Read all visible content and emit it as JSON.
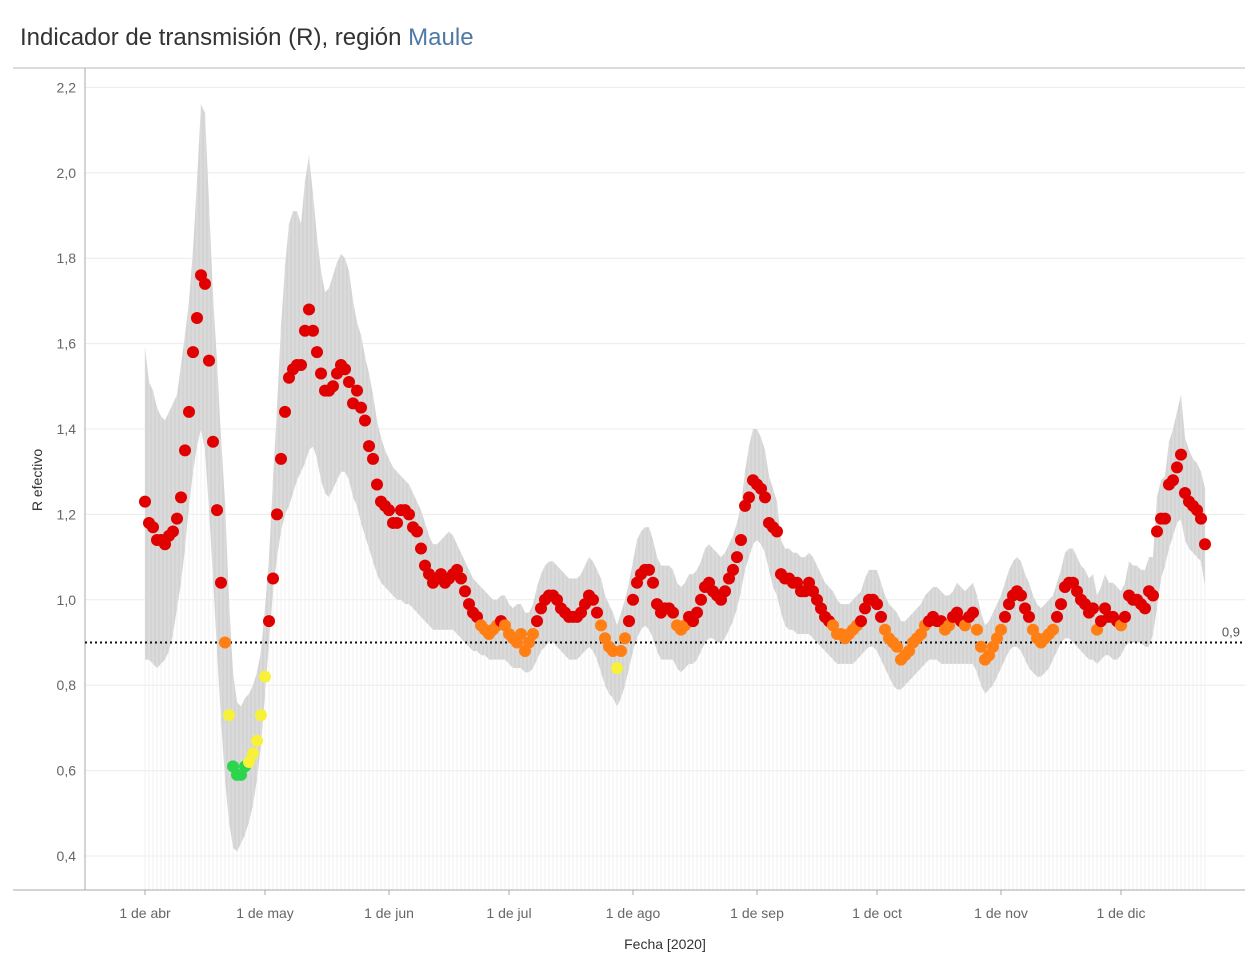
{
  "title": {
    "prefix": "Indicador de transmisión (R), región ",
    "highlight": "Maule"
  },
  "colors": {
    "red": "#e00000",
    "orange": "#ff7f14",
    "yellow": "#f7f13a",
    "green": "#2bd64c",
    "band": "#d4d4d4",
    "grid": "#ececec",
    "axis": "#aaaaaa",
    "highlight": "#4e79a7"
  },
  "chart_data": {
    "type": "scatter",
    "xlabel": "Fecha [2020]",
    "ylabel": "R efectivo",
    "ylim": [
      0.32,
      2.24
    ],
    "y_ticks": [
      0.4,
      0.6,
      0.8,
      1.0,
      1.2,
      1.4,
      1.6,
      1.8,
      2.0,
      2.2
    ],
    "y_tick_labels": [
      "0,4",
      "0,6",
      "0,8",
      "1,0",
      "1,2",
      "1,4",
      "1,6",
      "1,8",
      "2,0",
      "2,2"
    ],
    "x_ticks": [
      {
        "date": "2020-04-01",
        "label": "1 de abr"
      },
      {
        "date": "2020-05-01",
        "label": "1 de may"
      },
      {
        "date": "2020-06-01",
        "label": "1 de jun"
      },
      {
        "date": "2020-07-01",
        "label": "1 de jul"
      },
      {
        "date": "2020-08-01",
        "label": "1 de ago"
      },
      {
        "date": "2020-09-01",
        "label": "1 de sep"
      },
      {
        "date": "2020-10-01",
        "label": "1 de oct"
      },
      {
        "date": "2020-11-01",
        "label": "1 de nov"
      },
      {
        "date": "2020-12-01",
        "label": "1 de dic"
      }
    ],
    "reference_line": {
      "value": 0.9,
      "label": "0,9"
    },
    "grid": "horizontal",
    "legend": "none",
    "color_rule": {
      "red": "R >= 0.95",
      "orange": "0.85 <= R < 0.95",
      "yellow": "0.62 <= R < 0.85",
      "green": "R < 0.62"
    },
    "series": [
      {
        "start_date": "2020-04-01",
        "r": [
          1.23,
          1.18,
          1.17,
          1.14,
          1.14,
          1.13,
          1.15,
          1.16,
          1.19,
          1.24,
          1.35,
          1.44,
          1.58,
          1.66,
          1.76,
          1.74,
          1.56,
          1.37,
          1.21,
          1.04,
          0.9,
          0.73,
          0.61,
          0.59,
          0.59,
          0.61,
          0.62,
          0.64,
          0.67,
          0.73,
          0.82,
          0.95,
          1.05,
          1.2,
          1.33,
          1.44,
          1.52,
          1.54,
          1.55,
          1.55,
          1.63,
          1.68,
          1.63,
          1.58,
          1.53,
          1.49,
          1.49,
          1.5,
          1.53,
          1.55,
          1.54,
          1.51,
          1.46,
          1.49,
          1.45,
          1.42,
          1.36,
          1.33,
          1.27,
          1.23,
          1.22,
          1.21,
          1.18,
          1.18,
          1.21,
          1.21,
          1.2,
          1.17,
          1.16,
          1.12,
          1.08,
          1.06,
          1.04,
          1.05,
          1.06,
          1.04,
          1.05,
          1.06,
          1.07,
          1.05,
          1.02,
          0.99,
          0.97,
          0.96,
          0.94,
          0.93,
          0.92,
          0.93,
          0.94,
          0.95,
          0.94,
          0.92,
          0.91,
          0.9,
          0.92,
          0.88,
          0.9,
          0.92,
          0.95,
          0.98,
          1.0,
          1.01,
          1.01,
          1.0,
          0.98,
          0.97,
          0.96,
          0.96,
          0.96,
          0.97,
          0.99,
          1.01,
          1.0,
          0.97,
          0.94,
          0.91,
          0.89,
          0.88,
          0.84,
          0.88,
          0.91,
          0.95,
          1.0,
          1.04,
          1.06,
          1.07,
          1.07,
          1.04,
          0.99,
          0.97,
          0.98,
          0.98,
          0.97,
          0.94,
          0.93,
          0.94,
          0.96,
          0.95,
          0.97,
          1.0,
          1.03,
          1.04,
          1.02,
          1.01,
          1.0,
          1.02,
          1.05,
          1.07,
          1.1,
          1.14,
          1.22,
          1.24,
          1.28,
          1.27,
          1.26,
          1.24,
          1.18,
          1.17,
          1.16,
          1.06,
          1.05,
          1.05,
          1.04,
          1.04,
          1.02,
          1.02,
          1.04,
          1.02,
          1.0,
          0.98,
          0.96,
          0.95,
          0.94,
          0.92,
          0.92,
          0.91,
          0.92,
          0.93,
          0.94,
          0.95,
          0.98,
          1.0,
          1.0,
          0.99,
          0.96,
          0.93,
          0.91,
          0.9,
          0.89,
          0.86,
          0.87,
          0.88,
          0.9,
          0.91,
          0.92,
          0.94,
          0.95,
          0.96,
          0.95,
          0.95,
          0.93,
          0.94,
          0.96,
          0.97,
          0.95,
          0.94,
          0.96,
          0.97,
          0.93,
          0.89,
          0.86,
          0.87,
          0.89,
          0.91,
          0.93,
          0.96,
          0.99,
          1.01,
          1.02,
          1.01,
          0.98,
          0.96,
          0.93,
          0.91,
          0.9,
          0.91,
          0.92,
          0.93,
          0.96,
          0.99,
          1.03,
          1.04,
          1.04,
          1.02,
          1.0,
          0.99,
          0.97,
          0.98,
          0.93,
          0.95,
          0.98,
          0.96,
          0.96,
          0.95,
          0.94,
          0.96,
          1.01,
          1.0,
          1.0,
          0.99,
          0.98,
          1.02,
          1.01,
          1.16,
          1.19,
          1.19,
          1.27,
          1.28,
          1.31,
          1.34,
          1.25,
          1.23,
          1.22,
          1.21,
          1.19,
          1.13
        ],
        "ci_lower": [
          0.86,
          0.86,
          0.85,
          0.84,
          0.85,
          0.86,
          0.88,
          0.92,
          0.98,
          1.04,
          1.12,
          1.22,
          1.3,
          1.36,
          1.4,
          1.35,
          1.21,
          1.05,
          0.88,
          0.72,
          0.58,
          0.48,
          0.42,
          0.41,
          0.43,
          0.45,
          0.48,
          0.52,
          0.58,
          0.66,
          0.78,
          0.9,
          1.02,
          1.1,
          1.16,
          1.2,
          1.22,
          1.25,
          1.28,
          1.3,
          1.32,
          1.35,
          1.36,
          1.33,
          1.28,
          1.25,
          1.24,
          1.26,
          1.28,
          1.3,
          1.3,
          1.28,
          1.24,
          1.22,
          1.18,
          1.15,
          1.12,
          1.09,
          1.06,
          1.04,
          1.03,
          1.02,
          1.01,
          1.0,
          1.0,
          0.99,
          0.99,
          0.98,
          0.97,
          0.96,
          0.95,
          0.94,
          0.93,
          0.93,
          0.93,
          0.93,
          0.93,
          0.93,
          0.92,
          0.91,
          0.9,
          0.89,
          0.88,
          0.88,
          0.87,
          0.87,
          0.86,
          0.86,
          0.86,
          0.86,
          0.86,
          0.85,
          0.84,
          0.84,
          0.84,
          0.83,
          0.83,
          0.84,
          0.86,
          0.88,
          0.89,
          0.9,
          0.9,
          0.89,
          0.88,
          0.87,
          0.86,
          0.86,
          0.86,
          0.87,
          0.88,
          0.89,
          0.88,
          0.86,
          0.83,
          0.8,
          0.78,
          0.77,
          0.75,
          0.77,
          0.8,
          0.84,
          0.88,
          0.91,
          0.93,
          0.94,
          0.93,
          0.91,
          0.88,
          0.86,
          0.86,
          0.86,
          0.86,
          0.84,
          0.83,
          0.84,
          0.85,
          0.85,
          0.86,
          0.88,
          0.9,
          0.91,
          0.91,
          0.9,
          0.9,
          0.91,
          0.93,
          0.95,
          0.98,
          1.02,
          1.07,
          1.1,
          1.13,
          1.14,
          1.13,
          1.11,
          1.07,
          1.03,
          1.01,
          0.97,
          0.94,
          0.93,
          0.93,
          0.92,
          0.92,
          0.92,
          0.92,
          0.91,
          0.9,
          0.89,
          0.88,
          0.87,
          0.86,
          0.85,
          0.85,
          0.85,
          0.85,
          0.85,
          0.86,
          0.87,
          0.88,
          0.89,
          0.89,
          0.88,
          0.86,
          0.84,
          0.82,
          0.8,
          0.79,
          0.79,
          0.8,
          0.81,
          0.82,
          0.83,
          0.84,
          0.85,
          0.86,
          0.86,
          0.86,
          0.85,
          0.85,
          0.85,
          0.85,
          0.85,
          0.85,
          0.85,
          0.85,
          0.85,
          0.83,
          0.8,
          0.78,
          0.79,
          0.8,
          0.82,
          0.84,
          0.86,
          0.88,
          0.89,
          0.89,
          0.88,
          0.86,
          0.84,
          0.83,
          0.82,
          0.82,
          0.83,
          0.84,
          0.86,
          0.88,
          0.9,
          0.91,
          0.91,
          0.9,
          0.89,
          0.88,
          0.87,
          0.86,
          0.86,
          0.85,
          0.86,
          0.87,
          0.87,
          0.86,
          0.86,
          0.87,
          0.89,
          0.9,
          0.9,
          0.9,
          0.9,
          0.89,
          0.89,
          0.92,
          0.98,
          1.05,
          1.08,
          1.12,
          1.15,
          1.18,
          1.19,
          1.14,
          1.12,
          1.11,
          1.1,
          1.09,
          1.03
        ],
        "ci_upper": [
          1.59,
          1.51,
          1.49,
          1.45,
          1.43,
          1.42,
          1.44,
          1.46,
          1.48,
          1.55,
          1.62,
          1.7,
          1.82,
          1.98,
          2.16,
          2.14,
          1.93,
          1.71,
          1.56,
          1.38,
          1.23,
          1.0,
          0.83,
          0.76,
          0.75,
          0.77,
          0.78,
          0.8,
          0.83,
          0.88,
          0.98,
          1.1,
          1.28,
          1.45,
          1.64,
          1.78,
          1.88,
          1.91,
          1.91,
          1.88,
          1.98,
          2.04,
          1.95,
          1.85,
          1.77,
          1.72,
          1.73,
          1.76,
          1.79,
          1.81,
          1.8,
          1.77,
          1.7,
          1.65,
          1.62,
          1.57,
          1.53,
          1.48,
          1.42,
          1.38,
          1.35,
          1.33,
          1.31,
          1.3,
          1.29,
          1.28,
          1.27,
          1.25,
          1.23,
          1.21,
          1.18,
          1.15,
          1.13,
          1.13,
          1.14,
          1.15,
          1.16,
          1.15,
          1.13,
          1.11,
          1.09,
          1.07,
          1.05,
          1.04,
          1.03,
          1.02,
          1.01,
          1.0,
          1.0,
          1.01,
          1.01,
          0.99,
          0.98,
          0.99,
          0.99,
          0.97,
          0.97,
          0.99,
          1.03,
          1.06,
          1.08,
          1.09,
          1.09,
          1.08,
          1.07,
          1.06,
          1.05,
          1.05,
          1.05,
          1.06,
          1.08,
          1.1,
          1.09,
          1.07,
          1.05,
          1.01,
          0.99,
          0.97,
          0.94,
          0.97,
          1.0,
          1.04,
          1.09,
          1.14,
          1.16,
          1.17,
          1.17,
          1.14,
          1.1,
          1.08,
          1.08,
          1.08,
          1.07,
          1.04,
          1.03,
          1.04,
          1.06,
          1.06,
          1.07,
          1.09,
          1.12,
          1.13,
          1.12,
          1.11,
          1.1,
          1.11,
          1.13,
          1.15,
          1.18,
          1.22,
          1.3,
          1.36,
          1.4,
          1.4,
          1.38,
          1.35,
          1.29,
          1.26,
          1.23,
          1.14,
          1.12,
          1.12,
          1.11,
          1.11,
          1.1,
          1.1,
          1.11,
          1.1,
          1.08,
          1.06,
          1.04,
          1.03,
          1.02,
          1.0,
          0.99,
          0.99,
          0.99,
          1.0,
          1.01,
          1.02,
          1.05,
          1.07,
          1.07,
          1.07,
          1.04,
          1.01,
          0.99,
          0.98,
          0.97,
          0.95,
          0.95,
          0.96,
          0.97,
          0.98,
          0.99,
          1.01,
          1.02,
          1.03,
          1.03,
          1.02,
          1.01,
          1.01,
          1.02,
          1.04,
          1.03,
          1.02,
          1.03,
          1.04,
          1.01,
          0.97,
          0.94,
          0.95,
          0.97,
          0.99,
          1.01,
          1.04,
          1.07,
          1.09,
          1.1,
          1.09,
          1.06,
          1.04,
          1.01,
          0.99,
          0.98,
          0.99,
          1.0,
          1.01,
          1.04,
          1.07,
          1.11,
          1.12,
          1.12,
          1.1,
          1.08,
          1.07,
          1.05,
          1.06,
          1.01,
          1.03,
          1.06,
          1.04,
          1.04,
          1.03,
          1.02,
          1.04,
          1.09,
          1.08,
          1.08,
          1.07,
          1.07,
          1.1,
          1.1,
          1.24,
          1.28,
          1.29,
          1.37,
          1.4,
          1.44,
          1.48,
          1.38,
          1.35,
          1.33,
          1.32,
          1.3,
          1.26
        ]
      }
    ]
  }
}
